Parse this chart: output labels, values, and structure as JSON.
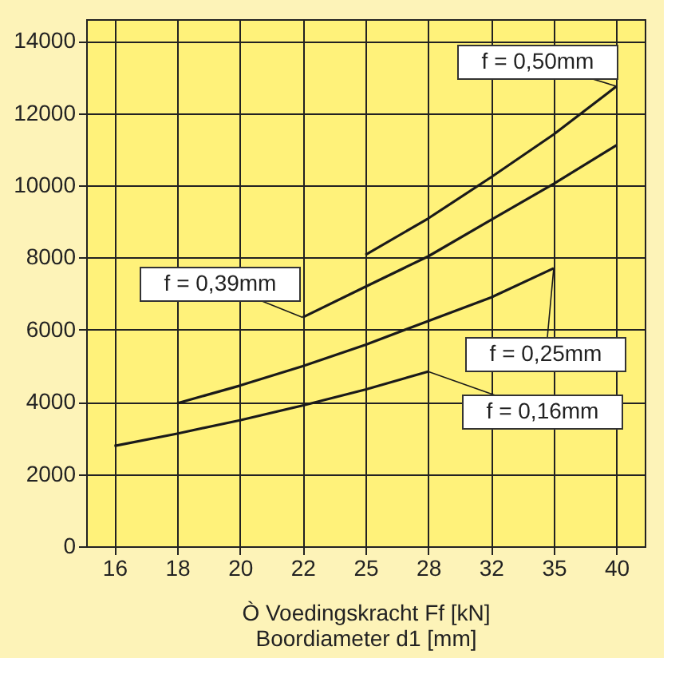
{
  "chart_data": {
    "type": "line",
    "xlabel": "Ò Voedingskracht Ff [kN]\nBoordiameter d1 [mm]",
    "categories": [
      "16",
      "18",
      "20",
      "22",
      "25",
      "28",
      "32",
      "35",
      "40"
    ],
    "series": [
      {
        "name": "f = 0,50mm",
        "color": "#1a1a1a",
        "values": [
          null,
          null,
          null,
          null,
          8070,
          9080,
          10220,
          11410,
          12740
        ]
      },
      {
        "name": "f = 0,39mm",
        "color": "#1a1a1a",
        "values": [
          null,
          null,
          null,
          6340,
          7190,
          8030,
          9040,
          10040,
          11110
        ]
      },
      {
        "name": "f = 0,25mm",
        "color": "#1a1a1a",
        "values": [
          null,
          3960,
          4450,
          4990,
          5580,
          6240,
          6890,
          7700,
          null
        ]
      },
      {
        "name": "f = 0,16mm",
        "color": "#1a1a1a",
        "values": [
          2780,
          3120,
          3490,
          3900,
          4340,
          4840,
          null,
          null,
          null
        ]
      }
    ],
    "ylim": [
      0,
      14600
    ],
    "yticks": [
      0,
      2000,
      4000,
      6000,
      8000,
      10000,
      12000,
      14000
    ],
    "grid": true,
    "marker": "none",
    "line_style": "solid"
  }
}
